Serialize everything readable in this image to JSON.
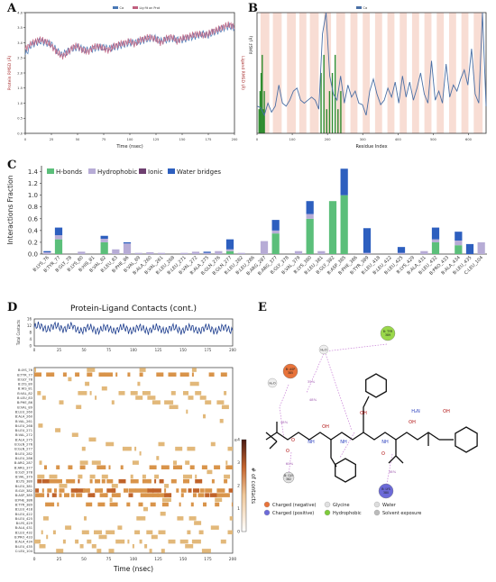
{
  "panels": {
    "A": "A",
    "B": "B",
    "C": "C",
    "D": "D",
    "E": "E"
  },
  "chart_data": [
    {
      "id": "A",
      "type": "line",
      "title": "",
      "legend": [
        "Cα",
        "Lig fit on Prot"
      ],
      "legend_position": "top-center",
      "xlabel": "Time (nsec)",
      "ylabel": "Protein RMSD (Å)",
      "y2label": "Ligand RMSD (Å)",
      "xlim": [
        0,
        200
      ],
      "ylim": [
        0,
        4
      ],
      "xticks": [
        0,
        25,
        50,
        75,
        100,
        125,
        150,
        175,
        200
      ],
      "yticks": [
        0.0,
        0.5,
        1.0,
        1.5,
        2.0,
        2.5,
        3.0,
        3.5,
        4.0
      ],
      "series": [
        {
          "name": "Cα",
          "color": "#4a78b5",
          "values": [
            2.6,
            2.9,
            3.0,
            3.05,
            3.0,
            2.95,
            2.75,
            2.6,
            2.7,
            2.8,
            2.85,
            2.8,
            2.75,
            2.8,
            2.85,
            2.85,
            2.8,
            2.85,
            2.9,
            2.95,
            3.0,
            3.0,
            3.05,
            3.1,
            3.15,
            3.15,
            3.05,
            3.1,
            3.15,
            3.1,
            3.1,
            3.15,
            3.2,
            3.25,
            3.3,
            3.25,
            3.35,
            3.4,
            3.5,
            3.55,
            3.5
          ]
        },
        {
          "name": "Lig fit on Prot",
          "color": "#c05f7e",
          "values": [
            2.8,
            2.95,
            3.05,
            3.1,
            3.05,
            2.9,
            2.7,
            2.55,
            2.65,
            2.85,
            2.9,
            2.75,
            2.7,
            2.85,
            2.9,
            2.8,
            2.75,
            2.9,
            2.95,
            3.0,
            3.05,
            2.95,
            3.1,
            3.15,
            3.2,
            3.1,
            3.0,
            3.15,
            3.2,
            3.05,
            3.15,
            3.2,
            3.25,
            3.3,
            3.25,
            3.3,
            3.4,
            3.45,
            3.55,
            3.6,
            3.55
          ]
        }
      ]
    },
    {
      "id": "B",
      "type": "line",
      "title": "",
      "legend": [
        "Cα"
      ],
      "legend_position": "top-center",
      "xlabel": "Residue Index",
      "ylabel": "RMSF (Å)",
      "xlim": [
        0,
        650
      ],
      "ylim": [
        0,
        4
      ],
      "xticks": [
        0,
        100,
        200,
        300,
        400,
        500,
        600
      ],
      "series": [
        {
          "name": "Cα",
          "color": "#4a6fa5",
          "values": [
            0.9,
            0.85,
            0.6,
            1.0,
            0.7,
            0.9,
            1.6,
            1.0,
            0.9,
            1.1,
            1.4,
            1.5,
            1.1,
            1.0,
            1.1,
            1.2,
            1.1,
            0.8,
            3.3,
            4.0,
            1.9,
            1.3,
            1.1,
            1.9,
            1.0,
            1.6,
            1.2,
            1.4,
            1.0,
            0.95,
            0.6,
            1.4,
            1.8,
            1.3,
            0.95,
            1.1,
            1.5,
            1.2,
            1.7,
            1.0,
            1.9,
            1.2,
            1.7,
            1.1,
            1.5,
            2.0,
            1.3,
            1.0,
            2.4,
            1.1,
            1.4,
            1.0,
            2.3,
            1.2,
            1.6,
            1.4,
            1.8,
            2.1,
            1.6,
            2.8,
            1.3,
            1.0,
            4.0,
            0.9
          ]
        }
      ],
      "contact_bands": "green bars near x 0-20 and 180-250",
      "shading": "light red bands mark secondary-structure regions"
    },
    {
      "id": "C",
      "type": "bar",
      "stacked": true,
      "title": "",
      "ylabel": "Interactions Fraction",
      "ylim": [
        0,
        1.5
      ],
      "yticks": [
        0.0,
        0.2,
        0.4,
        0.6,
        0.8,
        1.0,
        1.2,
        1.4
      ],
      "legend_position": "top-left",
      "categories": [
        "B:LYS_76",
        "B:TYR_77",
        "B:GLY_78",
        "B:LYS_80",
        "B:HIS_81",
        "B:VAL_82",
        "B:LEU_83",
        "B:PHE_86",
        "B:VAL_89",
        "B:ALA_260",
        "B:VAL_261",
        "B:LEU_268",
        "B:LEU_271",
        "B:VAL_272",
        "B:ALA_275",
        "B:GLN_276",
        "B:GLN_277",
        "B:LEU_282",
        "B:LEU_286",
        "B:ARG_287",
        "B:ARG_377",
        "B:GLY_378",
        "B:VAL_379",
        "B:LYS_380",
        "B:LEU_381",
        "B:GLY_382",
        "B:ASP_385",
        "B:PHE_386",
        "B:TYR_389",
        "B:LEU_418",
        "B:LEU_422",
        "B:LEU_425",
        "B:LYS_429",
        "B:ALA_431",
        "B:LEU_432",
        "B:PRO_433",
        "B:ALA_434",
        "B:LEU_435",
        "C:LEU_104"
      ],
      "series": [
        {
          "name": "H-bonds",
          "color": "#5bbf7a",
          "values": [
            0.0,
            0.25,
            0.0,
            0.0,
            0.0,
            0.2,
            0.0,
            0.0,
            0.0,
            0.0,
            0.0,
            0.0,
            0.0,
            0.0,
            0.0,
            0.0,
            0.05,
            0.0,
            0.0,
            0.0,
            0.35,
            0.0,
            0.0,
            0.6,
            0.0,
            0.9,
            1.0,
            0.0,
            0.0,
            0.0,
            0.0,
            0.0,
            0.0,
            0.0,
            0.2,
            0.0,
            0.15,
            0.0,
            0.0
          ]
        },
        {
          "name": "Hydrophobic",
          "color": "#b7acd6",
          "values": [
            0.03,
            0.07,
            0.0,
            0.04,
            0.0,
            0.06,
            0.08,
            0.18,
            0.02,
            0.03,
            0.02,
            0.0,
            0.02,
            0.04,
            0.02,
            0.05,
            0.03,
            0.02,
            0.0,
            0.22,
            0.05,
            0.0,
            0.05,
            0.08,
            0.05,
            0.0,
            0.0,
            0.0,
            0.02,
            0.0,
            0.0,
            0.02,
            0.0,
            0.05,
            0.05,
            0.0,
            0.08,
            0.0,
            0.2
          ]
        },
        {
          "name": "Ionic",
          "color": "#6e3f70",
          "values": [
            0.0,
            0.0,
            0.0,
            0.0,
            0.0,
            0.0,
            0.0,
            0.0,
            0.0,
            0.0,
            0.0,
            0.0,
            0.0,
            0.0,
            0.0,
            0.0,
            0.0,
            0.0,
            0.0,
            0.0,
            0.0,
            0.0,
            0.0,
            0.0,
            0.0,
            0.0,
            0.0,
            0.0,
            0.0,
            0.0,
            0.0,
            0.0,
            0.0,
            0.0,
            0.0,
            0.0,
            0.0,
            0.0,
            0.0
          ]
        },
        {
          "name": "Water bridges",
          "color": "#2d5fbf",
          "values": [
            0.02,
            0.13,
            0.0,
            0.0,
            0.0,
            0.05,
            0.0,
            0.02,
            0.0,
            0.0,
            0.0,
            0.0,
            0.0,
            0.0,
            0.02,
            0.0,
            0.17,
            0.0,
            0.0,
            0.0,
            0.18,
            0.0,
            0.0,
            0.22,
            0.0,
            0.0,
            0.45,
            0.0,
            0.42,
            0.0,
            0.0,
            0.1,
            0.0,
            0.0,
            0.2,
            0.0,
            0.15,
            0.17,
            0.0
          ]
        }
      ]
    },
    {
      "id": "D",
      "type": "heatmap",
      "title": "Protein-Ligand Contacts (cont.)",
      "xlabel": "Time (nsec)",
      "xlim": [
        0,
        200
      ],
      "xticks": [
        0,
        25,
        50,
        75,
        100,
        125,
        150,
        175,
        200
      ],
      "top_ylabel": "Total Contacts",
      "top_ylim": [
        0,
        16
      ],
      "top_yticks": [
        0,
        4,
        8,
        12,
        16
      ],
      "colorbar_label": "# of contacts",
      "colorbar_ticks": [
        "0",
        "1",
        "2",
        "3",
        "≥4"
      ],
      "rows": [
        "B:LYS_76",
        "B:TYR_77",
        "B:GLY_78",
        "B:LYS_80",
        "B:HIS_81",
        "B:VAL_82",
        "B:LEU_83",
        "B:PHE_86",
        "B:VAL_89",
        "B:LEU_260",
        "B:ALA_260",
        "B:VAL_261",
        "B:LEU_268",
        "B:LEU_271",
        "B:VAL_272",
        "B:ALA_275",
        "B:GLN_276",
        "B:GLN_277",
        "B:LEU_282",
        "B:LEU_286",
        "B:ARG_287",
        "B:ARG_377",
        "B:GLY_378",
        "B:VAL_379",
        "B:LYS_380",
        "B:LEU_381",
        "B:GLY_382",
        "B:ASP_385",
        "B:PHE_386",
        "B:TYR_389",
        "B:LEU_418",
        "B:LEU_422",
        "B:LEU_425",
        "B:LYS_429",
        "B:ALA_431",
        "B:LEU_432",
        "B:PRO_433",
        "B:ALA_434",
        "B:LEU_435",
        "C:LEU_104"
      ],
      "row_intensity": [
        0.15,
        0.6,
        0.05,
        0.1,
        0.05,
        0.35,
        0.2,
        0.2,
        0.1,
        0.05,
        0.05,
        0.05,
        0.05,
        0.05,
        0.05,
        0.05,
        0.1,
        0.2,
        0.05,
        0.05,
        0.25,
        0.5,
        0.05,
        0.4,
        0.8,
        0.1,
        1.0,
        0.95,
        0.1,
        0.5,
        0.05,
        0.05,
        0.2,
        0.05,
        0.1,
        0.4,
        0.1,
        0.4,
        0.2,
        0.2
      ]
    },
    {
      "id": "E",
      "type": "diagram",
      "legend": [
        {
          "label": "Charged (negative)",
          "color": "#e8733a"
        },
        {
          "label": "Charged (positive)",
          "color": "#6c6ad8"
        },
        {
          "label": "Glycine",
          "color": "#e0e0e0"
        },
        {
          "label": "Hydrophobic",
          "color": "#7ecb3a"
        },
        {
          "label": "Water",
          "color": "#dddddd"
        },
        {
          "label": "Solvent exposure",
          "color": "#bbbbbb"
        }
      ],
      "residues": [
        {
          "label": "B: TYR 389",
          "color": "#9ad84a"
        },
        {
          "label": "B: ASP 385",
          "color": "#e8733a"
        },
        {
          "label": "B: GLY 382",
          "color": "#e0e0e0"
        },
        {
          "label": "B: LYS 380",
          "color": "#6c6ad8"
        }
      ],
      "waters": [
        "H₂O",
        "H₂O"
      ],
      "atom_labels": [
        "OH",
        "OH",
        "OH",
        "NH",
        "NH",
        "NH",
        "O",
        "O",
        "O",
        "H₂N",
        "OH"
      ],
      "percents": [
        "35%",
        "48%",
        "48%",
        "60%",
        "38%"
      ]
    }
  ]
}
